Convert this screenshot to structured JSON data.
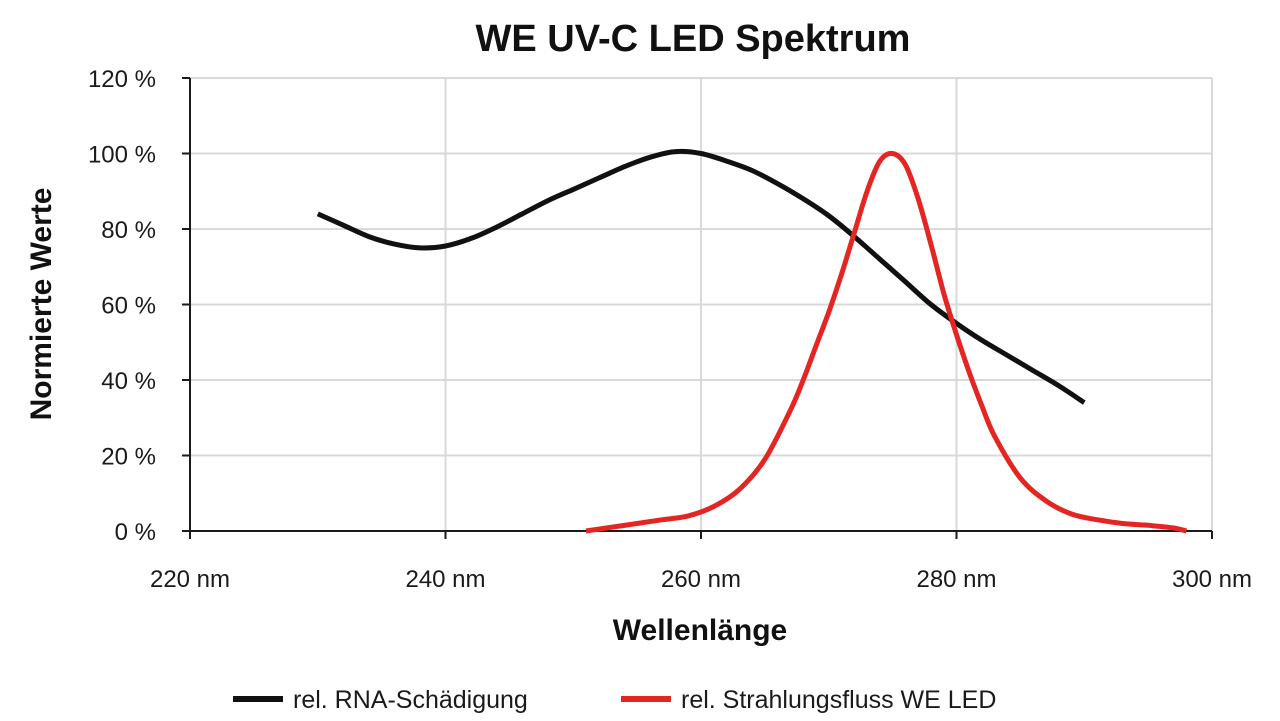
{
  "chart_data": {
    "type": "line",
    "title": "WE UV-C LED Spektrum",
    "xlabel": "Wellenlänge",
    "ylabel": "Normierte Werte",
    "xlim": [
      220,
      300
    ],
    "ylim": [
      0,
      120
    ],
    "x_ticks": [
      220,
      240,
      260,
      280,
      300
    ],
    "x_tick_labels": [
      "220 nm",
      "240 nm",
      "260 nm",
      "280 nm",
      "300 nm"
    ],
    "y_ticks": [
      0,
      20,
      40,
      60,
      80,
      100,
      120
    ],
    "y_tick_labels": [
      "0 %",
      "20 %",
      "40 %",
      "60 %",
      "80 %",
      "100 %",
      "120 %"
    ],
    "grid": true,
    "legend_position": "bottom",
    "series": [
      {
        "name": "rel. RNA-Schädigung",
        "color": "#111111",
        "x": [
          230,
          232,
          234,
          236,
          238,
          240,
          242,
          244,
          246,
          248,
          250,
          252,
          254,
          256,
          258,
          260,
          262,
          264,
          266,
          268,
          270,
          272,
          274,
          276,
          278,
          280,
          282,
          284,
          286,
          288,
          290
        ],
        "y": [
          84,
          81,
          78,
          76,
          75,
          75.5,
          77.5,
          80.5,
          84,
          87.5,
          90.5,
          93.5,
          96.5,
          99,
          100.5,
          100,
          98,
          95.5,
          92,
          88,
          83.5,
          78,
          72,
          66,
          60,
          55,
          50.5,
          46.5,
          42.5,
          38.5,
          34
        ]
      },
      {
        "name": "rel. Strahlungsfluss WE LED",
        "color": "#e52521",
        "x": [
          251,
          253,
          255,
          257,
          259,
          261,
          263,
          265,
          267,
          268,
          269,
          270,
          271,
          272,
          273,
          274,
          275,
          276,
          277,
          278,
          279,
          280,
          281,
          282,
          283,
          285,
          287,
          289,
          291,
          293,
          295,
          297,
          298
        ],
        "y": [
          0,
          1,
          2,
          3,
          4,
          6.5,
          11,
          19,
          32,
          40,
          49,
          58,
          68,
          79,
          90,
          98,
          100,
          97,
          88,
          76,
          63,
          52,
          42,
          33,
          25,
          14,
          8,
          4.5,
          3,
          2,
          1.5,
          0.8,
          0
        ]
      }
    ]
  }
}
